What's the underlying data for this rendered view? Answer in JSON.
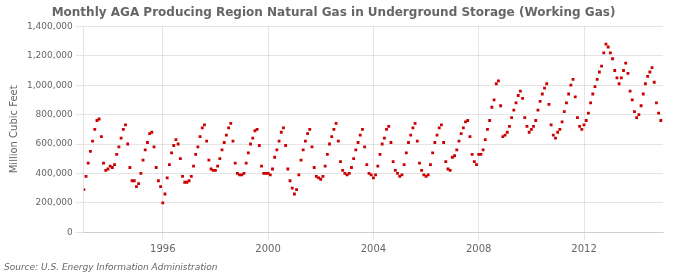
{
  "chart_data": {
    "type": "scatter",
    "title": "Monthly AGA Producing Region Natural Gas in Underground Storage (Working Gas)",
    "ylabel": "Million Cubic Feet",
    "annotations": [
      "Source: U.S. Energy Information Administration"
    ],
    "color": "#cc0000",
    "marker": "square",
    "grid": true,
    "xlim": [
      1993.0,
      2015.0
    ],
    "xticks": [
      1996,
      2000,
      2004,
      2008,
      2012
    ],
    "ylim": [
      0,
      1400000
    ],
    "yticks": [
      0,
      {
        "value": 200000,
        "label": "200,000"
      },
      {
        "value": 400000,
        "label": "400,000"
      },
      {
        "value": 600000,
        "label": "600,000"
      },
      {
        "value": 800000,
        "label": "800,000"
      },
      {
        "value": 1000000,
        "label": "1,000,000"
      },
      {
        "value": 1200000,
        "label": "1,200,000"
      },
      {
        "value": 1400000,
        "label": "1,400,000"
      }
    ],
    "x": [
      1993.0,
      1993.083,
      1993.167,
      1993.25,
      1993.333,
      1993.417,
      1993.5,
      1993.583,
      1993.667,
      1993.75,
      1993.833,
      1993.917,
      1994.0,
      1994.083,
      1994.167,
      1994.25,
      1994.333,
      1994.417,
      1994.5,
      1994.583,
      1994.667,
      1994.75,
      1994.833,
      1994.917,
      1995.0,
      1995.083,
      1995.167,
      1995.25,
      1995.333,
      1995.417,
      1995.5,
      1995.583,
      1995.667,
      1995.75,
      1995.833,
      1995.917,
      1996.0,
      1996.083,
      1996.167,
      1996.25,
      1996.333,
      1996.417,
      1996.5,
      1996.583,
      1996.667,
      1996.75,
      1996.833,
      1996.917,
      1997.0,
      1997.083,
      1997.167,
      1997.25,
      1997.333,
      1997.417,
      1997.5,
      1997.583,
      1997.667,
      1997.75,
      1997.833,
      1997.917,
      1998.0,
      1998.083,
      1998.167,
      1998.25,
      1998.333,
      1998.417,
      1998.5,
      1998.583,
      1998.667,
      1998.75,
      1998.833,
      1998.917,
      1999.0,
      1999.083,
      1999.167,
      1999.25,
      1999.333,
      1999.417,
      1999.5,
      1999.583,
      1999.667,
      1999.75,
      1999.833,
      1999.917,
      2000.0,
      2000.083,
      2000.167,
      2000.25,
      2000.333,
      2000.417,
      2000.5,
      2000.583,
      2000.667,
      2000.75,
      2000.833,
      2000.917,
      2001.0,
      2001.083,
      2001.167,
      2001.25,
      2001.333,
      2001.417,
      2001.5,
      2001.583,
      2001.667,
      2001.75,
      2001.833,
      2001.917,
      2002.0,
      2002.083,
      2002.167,
      2002.25,
      2002.333,
      2002.417,
      2002.5,
      2002.583,
      2002.667,
      2002.75,
      2002.833,
      2002.917,
      2003.0,
      2003.083,
      2003.167,
      2003.25,
      2003.333,
      2003.417,
      2003.5,
      2003.583,
      2003.667,
      2003.75,
      2003.833,
      2003.917,
      2004.0,
      2004.083,
      2004.167,
      2004.25,
      2004.333,
      2004.417,
      2004.5,
      2004.583,
      2004.667,
      2004.75,
      2004.833,
      2004.917,
      2005.0,
      2005.083,
      2005.167,
      2005.25,
      2005.333,
      2005.417,
      2005.5,
      2005.583,
      2005.667,
      2005.75,
      2005.833,
      2005.917,
      2006.0,
      2006.083,
      2006.167,
      2006.25,
      2006.333,
      2006.417,
      2006.5,
      2006.583,
      2006.667,
      2006.75,
      2006.833,
      2006.917,
      2007.0,
      2007.083,
      2007.167,
      2007.25,
      2007.333,
      2007.417,
      2007.5,
      2007.583,
      2007.667,
      2007.75,
      2007.833,
      2007.917,
      2008.0,
      2008.083,
      2008.167,
      2008.25,
      2008.333,
      2008.417,
      2008.5,
      2008.583,
      2008.667,
      2008.75,
      2008.833,
      2008.917,
      2009.0,
      2009.083,
      2009.167,
      2009.25,
      2009.333,
      2009.417,
      2009.5,
      2009.583,
      2009.667,
      2009.75,
      2009.833,
      2009.917,
      2010.0,
      2010.083,
      2010.167,
      2010.25,
      2010.333,
      2010.417,
      2010.5,
      2010.583,
      2010.667,
      2010.75,
      2010.833,
      2010.917,
      2011.0,
      2011.083,
      2011.167,
      2011.25,
      2011.333,
      2011.417,
      2011.5,
      2011.583,
      2011.667,
      2011.75,
      2011.833,
      2011.917,
      2012.0,
      2012.083,
      2012.167,
      2012.25,
      2012.333,
      2012.417,
      2012.5,
      2012.583,
      2012.667,
      2012.75,
      2012.833,
      2012.917,
      2013.0,
      2013.083,
      2013.167,
      2013.25,
      2013.333,
      2013.417,
      2013.5,
      2013.583,
      2013.667,
      2013.75,
      2013.833,
      2013.917,
      2014.0,
      2014.083,
      2014.167,
      2014.25,
      2014.333,
      2014.417,
      2014.5,
      2014.583,
      2014.667,
      2014.75,
      2014.833,
      2014.917
    ],
    "values": [
      290000,
      380000,
      470000,
      550000,
      620000,
      700000,
      760000,
      770000,
      650000,
      470000,
      420000,
      430000,
      450000,
      440000,
      460000,
      530000,
      580000,
      640000,
      700000,
      730000,
      600000,
      440000,
      350000,
      350000,
      310000,
      330000,
      400000,
      490000,
      560000,
      610000,
      670000,
      680000,
      580000,
      440000,
      350000,
      310000,
      200000,
      260000,
      370000,
      460000,
      540000,
      590000,
      630000,
      600000,
      500000,
      380000,
      340000,
      340000,
      350000,
      380000,
      450000,
      530000,
      580000,
      650000,
      710000,
      730000,
      620000,
      490000,
      430000,
      420000,
      420000,
      450000,
      500000,
      560000,
      610000,
      660000,
      710000,
      740000,
      620000,
      470000,
      400000,
      390000,
      390000,
      400000,
      470000,
      540000,
      600000,
      640000,
      690000,
      700000,
      590000,
      450000,
      400000,
      400000,
      400000,
      390000,
      430000,
      510000,
      560000,
      620000,
      680000,
      710000,
      590000,
      430000,
      350000,
      300000,
      260000,
      290000,
      390000,
      490000,
      560000,
      620000,
      670000,
      700000,
      580000,
      440000,
      380000,
      370000,
      360000,
      380000,
      450000,
      530000,
      600000,
      650000,
      700000,
      740000,
      620000,
      480000,
      420000,
      400000,
      390000,
      400000,
      440000,
      500000,
      560000,
      610000,
      660000,
      700000,
      580000,
      460000,
      400000,
      390000,
      370000,
      390000,
      450000,
      530000,
      600000,
      640000,
      700000,
      720000,
      610000,
      480000,
      420000,
      400000,
      380000,
      390000,
      460000,
      540000,
      610000,
      660000,
      710000,
      740000,
      620000,
      470000,
      420000,
      390000,
      380000,
      390000,
      460000,
      540000,
      610000,
      660000,
      710000,
      730000,
      610000,
      480000,
      430000,
      420000,
      510000,
      520000,
      560000,
      620000,
      670000,
      710000,
      750000,
      760000,
      650000,
      530000,
      480000,
      460000,
      530000,
      530000,
      560000,
      630000,
      700000,
      760000,
      850000,
      900000,
      1010000,
      1030000,
      860000,
      650000,
      660000,
      680000,
      720000,
      780000,
      830000,
      880000,
      930000,
      960000,
      910000,
      780000,
      720000,
      680000,
      700000,
      720000,
      760000,
      830000,
      890000,
      940000,
      980000,
      1010000,
      870000,
      730000,
      660000,
      640000,
      680000,
      700000,
      750000,
      820000,
      880000,
      940000,
      1000000,
      1040000,
      920000,
      780000,
      720000,
      700000,
      730000,
      760000,
      810000,
      880000,
      940000,
      990000,
      1040000,
      1090000,
      1130000,
      1220000,
      1280000,
      1260000,
      1220000,
      1180000,
      1100000,
      1050000,
      1010000,
      1050000,
      1100000,
      1150000,
      1080000,
      960000,
      900000,
      820000,
      780000,
      800000,
      860000,
      940000,
      1010000,
      1060000,
      1090000,
      1120000,
      1020000,
      880000,
      810000,
      760000
    ]
  }
}
